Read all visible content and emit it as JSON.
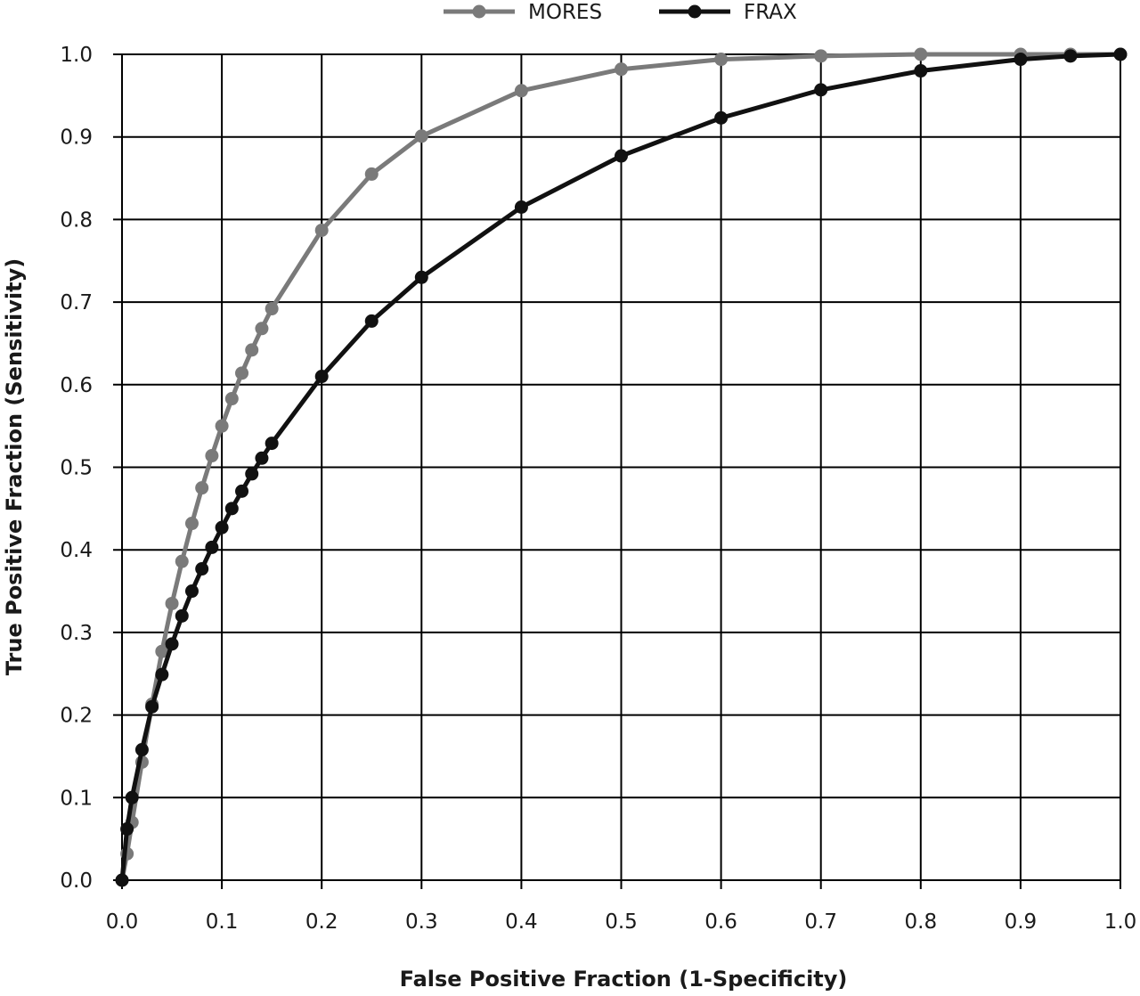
{
  "chart_data": {
    "type": "line",
    "title": "",
    "xlabel": "False Positive Fraction (1-Specificity)",
    "ylabel": "True Positive Fraction (Sensitivity)",
    "xlim": [
      0,
      1
    ],
    "ylim": [
      0,
      1
    ],
    "x_ticks": [
      "0.0",
      "0.1",
      "0.2",
      "0.3",
      "0.4",
      "0.5",
      "0.6",
      "0.7",
      "0.8",
      "0.9",
      "1.0"
    ],
    "y_ticks": [
      "0.0",
      "0.1",
      "0.2",
      "0.3",
      "0.4",
      "0.5",
      "0.6",
      "0.7",
      "0.8",
      "0.9",
      "1.0"
    ],
    "grid": true,
    "legend_position": "top-center",
    "series": [
      {
        "name": "MORES",
        "color": "#7a7a7a",
        "x": [
          0,
          0.005,
          0.01,
          0.02,
          0.03,
          0.04,
          0.05,
          0.06,
          0.07,
          0.08,
          0.09,
          0.1,
          0.11,
          0.12,
          0.13,
          0.14,
          0.15,
          0.2,
          0.25,
          0.3,
          0.4,
          0.5,
          0.6,
          0.7,
          0.8,
          0.9,
          0.95,
          1.0
        ],
        "y": [
          0,
          0.032,
          0.07,
          0.143,
          0.213,
          0.277,
          0.335,
          0.386,
          0.432,
          0.475,
          0.514,
          0.55,
          0.583,
          0.614,
          0.642,
          0.668,
          0.692,
          0.787,
          0.855,
          0.901,
          0.956,
          0.982,
          0.994,
          0.998,
          1.0,
          1.0,
          1.0,
          1.0
        ]
      },
      {
        "name": "FRAX",
        "color": "#111111",
        "x": [
          0,
          0.005,
          0.01,
          0.02,
          0.03,
          0.04,
          0.05,
          0.06,
          0.07,
          0.08,
          0.09,
          0.1,
          0.11,
          0.12,
          0.13,
          0.14,
          0.15,
          0.2,
          0.25,
          0.3,
          0.4,
          0.5,
          0.6,
          0.7,
          0.8,
          0.9,
          0.95,
          1.0
        ],
        "y": [
          0,
          0.062,
          0.1,
          0.158,
          0.21,
          0.249,
          0.286,
          0.32,
          0.35,
          0.377,
          0.403,
          0.427,
          0.45,
          0.471,
          0.492,
          0.511,
          0.529,
          0.61,
          0.677,
          0.73,
          0.815,
          0.877,
          0.923,
          0.957,
          0.98,
          0.994,
          0.998,
          1.0
        ]
      }
    ]
  }
}
